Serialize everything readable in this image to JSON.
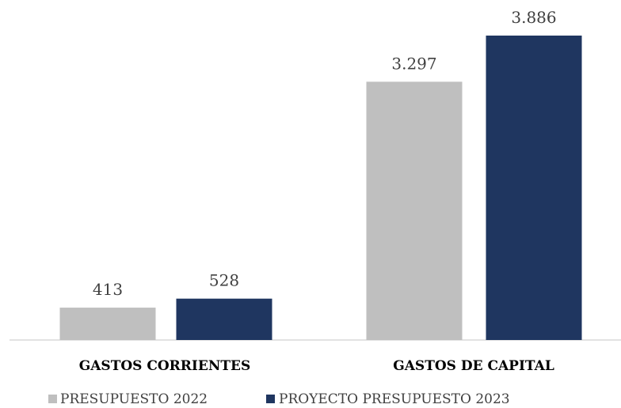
{
  "chart_data": {
    "type": "bar",
    "categories": [
      "GASTOS CORRIENTES",
      "GASTOS DE CAPITAL"
    ],
    "series": [
      {
        "name": "PRESUPUESTO 2022",
        "values": [
          413,
          3297
        ],
        "labels": [
          "413",
          "3.297"
        ],
        "color": "#bfbfbf"
      },
      {
        "name": "PROYECTO PRESUPUESTO 2023",
        "values": [
          528,
          3886
        ],
        "labels": [
          "528",
          "3.886"
        ],
        "color": "#1f3660"
      }
    ],
    "title": "",
    "xlabel": "",
    "ylabel": "",
    "ylim": [
      0,
      3886
    ],
    "grid": false,
    "legend_position": "bottom-left"
  }
}
